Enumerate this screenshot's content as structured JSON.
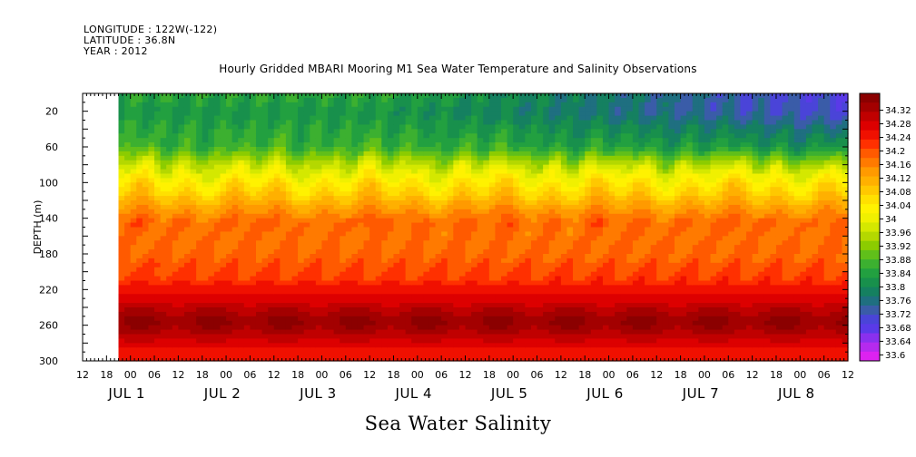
{
  "header": {
    "longitude": "LONGITUDE : 122W(-122)",
    "latitude": "LATITUDE : 36.8N",
    "year": "YEAR : 2012"
  },
  "chart_data": {
    "type": "heatmap",
    "title": "Hourly Gridded MBARI Mooring M1 Sea Water Temperature and Salinity Observations",
    "caption": "Sea Water Salinity",
    "ylabel": "DEPTH (m)",
    "ylim": [
      300,
      0
    ],
    "y_ticks": [
      20,
      60,
      100,
      140,
      180,
      220,
      260,
      300
    ],
    "x_hour_labels": [
      "12",
      "18",
      "00",
      "06",
      "12",
      "18",
      "00",
      "06",
      "12",
      "18",
      "00",
      "06",
      "12",
      "18",
      "00",
      "06",
      "12",
      "18",
      "00",
      "06",
      "12",
      "18",
      "00",
      "06",
      "12",
      "18",
      "00",
      "06",
      "12",
      "18",
      "00",
      "06",
      "12"
    ],
    "x_date_labels": [
      "JUL  1",
      "JUL  2",
      "JUL  3",
      "JUL  4",
      "JUL  5",
      "JUL  6",
      "JUL  7",
      "JUL  8"
    ],
    "time_range_hours": [
      -12,
      180
    ],
    "data_start_hour": -3,
    "colorbar_levels": [
      "34.32",
      "34.28",
      "34.24",
      "34.2",
      "34.16",
      "34.12",
      "34.08",
      "34.04",
      "34",
      "33.96",
      "33.92",
      "33.88",
      "33.84",
      "33.8",
      "33.76",
      "33.72",
      "33.68",
      "33.64",
      "33.6"
    ],
    "colorbar_colors": [
      "#8b0000",
      "#a30000",
      "#c00000",
      "#dd0000",
      "#f01000",
      "#ff3000",
      "#ff5a00",
      "#ff7a00",
      "#ff9a00",
      "#ffb000",
      "#ffc800",
      "#ffe000",
      "#fff200",
      "#f0f000",
      "#d4e800",
      "#b4d800",
      "#8ccc00",
      "#60bf1a",
      "#3cb030",
      "#22a040",
      "#18904c",
      "#158060",
      "#1f6f80",
      "#3a5ca8",
      "#4a44d8",
      "#5a3ae8",
      "#8a30ee",
      "#b52aee",
      "#dd22f0"
    ],
    "salinity_profile": [
      {
        "depth": 5,
        "value": 33.84
      },
      {
        "depth": 20,
        "value": 33.82
      },
      {
        "depth": 40,
        "value": 33.84
      },
      {
        "depth": 60,
        "value": 33.86
      },
      {
        "depth": 80,
        "value": 33.95
      },
      {
        "depth": 100,
        "value": 34.02
      },
      {
        "depth": 115,
        "value": 34.06
      },
      {
        "depth": 130,
        "value": 34.11
      },
      {
        "depth": 145,
        "value": 34.15
      },
      {
        "depth": 160,
        "value": 34.14
      },
      {
        "depth": 180,
        "value": 34.15
      },
      {
        "depth": 200,
        "value": 34.17
      },
      {
        "depth": 220,
        "value": 34.2
      },
      {
        "depth": 240,
        "value": 34.26
      },
      {
        "depth": 255,
        "value": 34.3
      },
      {
        "depth": 270,
        "value": 34.27
      },
      {
        "depth": 285,
        "value": 34.22
      },
      {
        "depth": 300,
        "value": 34.2
      }
    ]
  }
}
